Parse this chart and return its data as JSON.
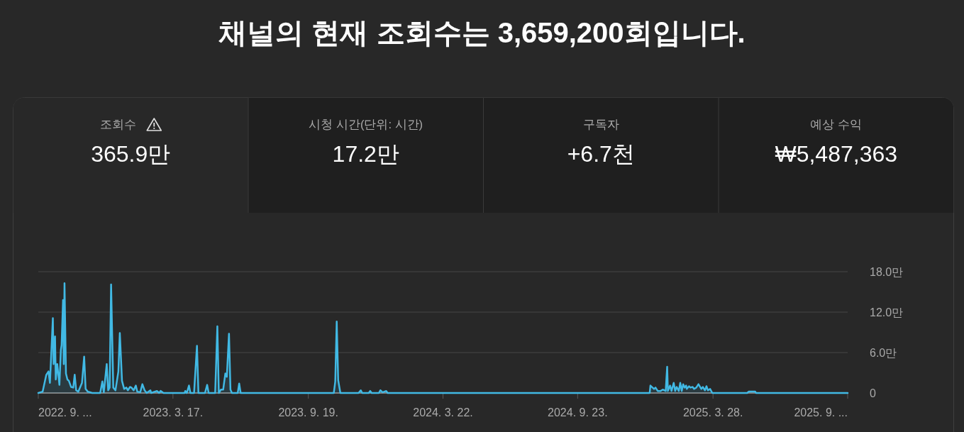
{
  "chart_data": [
    {
      "type": "other",
      "title": "채널의 현재 조회수는 3,659,200회입니다.",
      "categories": [
        "조회수",
        "시청 시간(단위: 시간)",
        "구독자",
        "예상 수익"
      ],
      "value_labels": [
        "365.9만",
        "17.2만",
        "+6.7천",
        "₩5,487,363"
      ]
    },
    {
      "type": "area",
      "color": "#41b9e4",
      "grid": "y",
      "x": [
        "2022-09-13",
        "2022-09-19",
        "2022-09-24",
        "2022-09-27",
        "2022-09-29",
        "2022-10-03",
        "2022-10-04",
        "2022-10-06",
        "2022-10-07",
        "2022-10-09",
        "2022-10-12",
        "2022-10-14",
        "2022-10-15",
        "2022-10-17",
        "2022-10-18",
        "2022-10-19",
        "2022-10-21",
        "2022-10-23",
        "2022-10-25",
        "2022-10-28",
        "2022-10-31",
        "2022-11-02",
        "2022-11-04",
        "2022-11-07",
        "2022-11-12",
        "2022-11-15",
        "2022-11-17",
        "2022-11-20",
        "2022-11-23",
        "2022-11-26",
        "2022-12-07",
        "2022-12-10",
        "2022-12-12",
        "2022-12-16",
        "2022-12-18",
        "2022-12-20",
        "2022-12-22",
        "2022-12-25",
        "2022-12-28",
        "2023-01-01",
        "2023-01-03",
        "2023-01-06",
        "2023-01-09",
        "2023-01-12",
        "2023-01-14",
        "2023-01-17",
        "2023-01-19",
        "2023-01-22",
        "2023-01-25",
        "2023-01-27",
        "2023-01-31",
        "2023-02-03",
        "2023-02-06",
        "2023-02-09",
        "2023-02-14",
        "2023-02-15",
        "2023-02-23",
        "2023-02-26",
        "2023-02-28",
        "2023-03-04",
        "2023-04-02",
        "2023-04-03",
        "2023-04-05",
        "2023-04-08",
        "2023-04-10",
        "2023-04-15",
        "2023-04-16",
        "2023-04-19",
        "2023-04-21",
        "2023-04-30",
        "2023-05-03",
        "2023-05-05",
        "2023-05-14",
        "2023-05-17",
        "2023-05-19",
        "2023-05-22",
        "2023-05-25",
        "2023-05-28",
        "2023-05-30",
        "2023-06-02",
        "2023-06-04",
        "2023-06-06",
        "2023-06-14",
        "2023-06-16",
        "2023-06-18",
        "2023-10-24",
        "2023-10-26",
        "2023-10-28",
        "2023-10-30",
        "2023-11-02",
        "2023-11-27",
        "2023-11-30",
        "2023-12-02",
        "2023-12-11",
        "2023-12-13",
        "2023-12-15",
        "2023-12-25",
        "2023-12-27",
        "2023-12-30",
        "2024-01-04",
        "2024-01-06",
        "2024-12-31",
        "2025-01-01",
        "2025-01-06",
        "2025-01-08",
        "2025-01-11",
        "2025-01-15",
        "2025-01-18",
        "2025-01-20",
        "2025-01-22",
        "2025-01-24",
        "2025-01-25",
        "2025-01-28",
        "2025-01-30",
        "2025-02-02",
        "2025-02-04",
        "2025-02-06",
        "2025-02-09",
        "2025-02-11",
        "2025-02-13",
        "2025-02-15",
        "2025-02-17",
        "2025-02-19",
        "2025-02-20",
        "2025-02-23",
        "2025-02-25",
        "2025-02-28",
        "2025-03-02",
        "2025-03-05",
        "2025-03-08",
        "2025-03-12",
        "2025-03-14",
        "2025-03-17",
        "2025-03-19",
        "2025-03-21",
        "2025-03-24",
        "2025-03-27",
        "2025-05-14",
        "2025-05-16",
        "2025-05-25",
        "2025-05-26",
        "2025-09-29"
      ],
      "values": [
        0,
        0.2,
        2.7,
        3.2,
        1.5,
        11.1,
        4.3,
        8.4,
        2.0,
        4.3,
        1.2,
        6.4,
        7.1,
        13.8,
        4.3,
        16.3,
        2.9,
        2.0,
        1.8,
        0.9,
        0.8,
        2.7,
        0.4,
        0.2,
        1.5,
        5.4,
        0.6,
        0.2,
        0.1,
        0,
        0,
        1.7,
        0.1,
        4.3,
        0.4,
        0.8,
        16.1,
        0.8,
        0.4,
        3.2,
        8.9,
        1.8,
        0.6,
        0.8,
        0.4,
        0.9,
        0.8,
        0.4,
        1.1,
        0.2,
        0.1,
        1.3,
        0.4,
        0,
        0.4,
        0,
        0.3,
        0,
        0.3,
        0,
        0,
        0.3,
        0,
        1.1,
        0,
        0,
        1.8,
        7.0,
        0,
        0,
        1.2,
        0,
        0,
        9.9,
        0,
        0.5,
        0.5,
        2.9,
        2.4,
        8.8,
        0.5,
        0,
        0,
        1.4,
        0,
        0,
        1.7,
        10.6,
        1.9,
        0,
        0,
        0.4,
        0,
        0,
        0.3,
        0,
        0,
        0.4,
        0.1,
        0.3,
        0,
        0,
        1.1,
        0.6,
        0.8,
        0.3,
        0.3,
        0.5,
        0.4,
        0.3,
        3.9,
        0.3,
        1.1,
        0.3,
        1.5,
        0.3,
        0.9,
        0.3,
        1.5,
        0.3,
        1.3,
        0.8,
        1.1,
        0.6,
        1.0,
        0.8,
        0.9,
        0.6,
        0.8,
        1.3,
        0.6,
        0.9,
        0.4,
        1.0,
        0.4,
        0.6,
        0,
        0,
        0.2,
        0.2,
        0,
        0
      ],
      "xlim": [
        "2022-09-13",
        "2025-09-29"
      ],
      "xticks": [
        {
          "value": "2022-09-13",
          "label": "2022. 9. ..."
        },
        {
          "value": "2023-03-17",
          "label": "2023. 3. 17."
        },
        {
          "value": "2023-09-19",
          "label": "2023. 9. 19."
        },
        {
          "value": "2024-03-22",
          "label": "2024. 3. 22."
        },
        {
          "value": "2024-09-23",
          "label": "2024. 9. 23."
        },
        {
          "value": "2025-03-28",
          "label": "2025. 3. 28."
        },
        {
          "value": "2025-09-29",
          "label": "2025. 9. ..."
        }
      ],
      "ylim": [
        0,
        18
      ],
      "yticks": [
        0,
        {
          "value": 6,
          "label": "6.0만"
        },
        {
          "value": 12,
          "label": "12.0만"
        },
        {
          "value": 18,
          "label": "18.0만"
        }
      ]
    }
  ]
}
